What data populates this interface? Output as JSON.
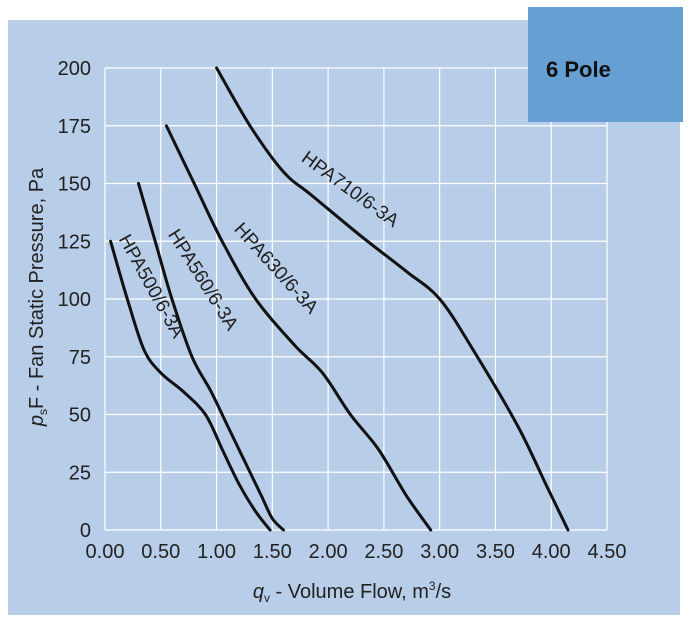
{
  "badge": {
    "label": "6 Pole",
    "color": "#659fd4"
  },
  "colors": {
    "panel": "#b7cde8",
    "grid": "#ffffff",
    "curve": "#111111",
    "text": "#222222"
  },
  "chart_data": {
    "type": "line",
    "title": "",
    "xlabel": {
      "symbol": "q",
      "subscript": "v",
      "text": " - Volume Flow, m",
      "superscript": "3",
      "tail": "/s"
    },
    "ylabel": {
      "symbol": "p",
      "subscript": "s",
      "text": "F - Fan Static Pressure, Pa"
    },
    "xlim": [
      0,
      4.5
    ],
    "ylim": [
      0,
      200
    ],
    "grid": true,
    "x_ticks": [
      {
        "v": 0,
        "label": "0.00"
      },
      {
        "v": 0.5,
        "label": "0.50"
      },
      {
        "v": 1,
        "label": "1.00"
      },
      {
        "v": 1.5,
        "label": "1.50"
      },
      {
        "v": 2,
        "label": "2.00"
      },
      {
        "v": 2.5,
        "label": "2.50"
      },
      {
        "v": 3,
        "label": "3.00"
      },
      {
        "v": 3.5,
        "label": "3.50"
      },
      {
        "v": 4,
        "label": "4.00"
      },
      {
        "v": 4.5,
        "label": "4.50"
      }
    ],
    "y_ticks": [
      {
        "v": 0,
        "label": "0"
      },
      {
        "v": 25,
        "label": "25"
      },
      {
        "v": 50,
        "label": "50"
      },
      {
        "v": 75,
        "label": "75"
      },
      {
        "v": 100,
        "label": "100"
      },
      {
        "v": 125,
        "label": "125"
      },
      {
        "v": 150,
        "label": "150"
      },
      {
        "v": 175,
        "label": "175"
      },
      {
        "v": 200,
        "label": "200"
      }
    ],
    "series": [
      {
        "name": "HPA500/6-3A",
        "points": [
          [
            0.05,
            125
          ],
          [
            0.2,
            100
          ],
          [
            0.35,
            78
          ],
          [
            0.5,
            68
          ],
          [
            0.7,
            60
          ],
          [
            0.9,
            50
          ],
          [
            1.05,
            35
          ],
          [
            1.2,
            20
          ],
          [
            1.35,
            8
          ],
          [
            1.48,
            0
          ]
        ]
      },
      {
        "name": "HPA560/6-3A",
        "points": [
          [
            0.3,
            150
          ],
          [
            0.45,
            125
          ],
          [
            0.6,
            100
          ],
          [
            0.78,
            75
          ],
          [
            0.95,
            60
          ],
          [
            1.1,
            45
          ],
          [
            1.25,
            30
          ],
          [
            1.4,
            15
          ],
          [
            1.5,
            5
          ],
          [
            1.6,
            0
          ]
        ]
      },
      {
        "name": "HPA630/6-3A",
        "points": [
          [
            0.55,
            175
          ],
          [
            0.8,
            150
          ],
          [
            1.05,
            125
          ],
          [
            1.35,
            100
          ],
          [
            1.7,
            80
          ],
          [
            1.95,
            68
          ],
          [
            2.2,
            50
          ],
          [
            2.45,
            35
          ],
          [
            2.7,
            15
          ],
          [
            2.92,
            0
          ]
        ]
      },
      {
        "name": "HPA710/6-3A",
        "points": [
          [
            1.0,
            200
          ],
          [
            1.3,
            175
          ],
          [
            1.6,
            155
          ],
          [
            1.85,
            145
          ],
          [
            2.3,
            127
          ],
          [
            2.7,
            112
          ],
          [
            3.0,
            100
          ],
          [
            3.3,
            78
          ],
          [
            3.7,
            45
          ],
          [
            3.95,
            20
          ],
          [
            4.15,
            0
          ]
        ]
      }
    ],
    "labels": [
      {
        "series": "HPA500/6-3A",
        "text": "HPA500/6-3A",
        "x": 0.12,
        "y": 126,
        "angle": 61
      },
      {
        "series": "HPA560/6-3A",
        "text": "HPA560/6-3A",
        "x": 0.56,
        "y": 128,
        "angle": 58
      },
      {
        "series": "HPA630/6-3A",
        "text": "HPA630/6-3A",
        "x": 1.15,
        "y": 130,
        "angle": 48
      },
      {
        "series": "HPA710/6-3A",
        "text": "HPA710/6-3A",
        "x": 1.75,
        "y": 160,
        "angle": 36
      }
    ]
  }
}
